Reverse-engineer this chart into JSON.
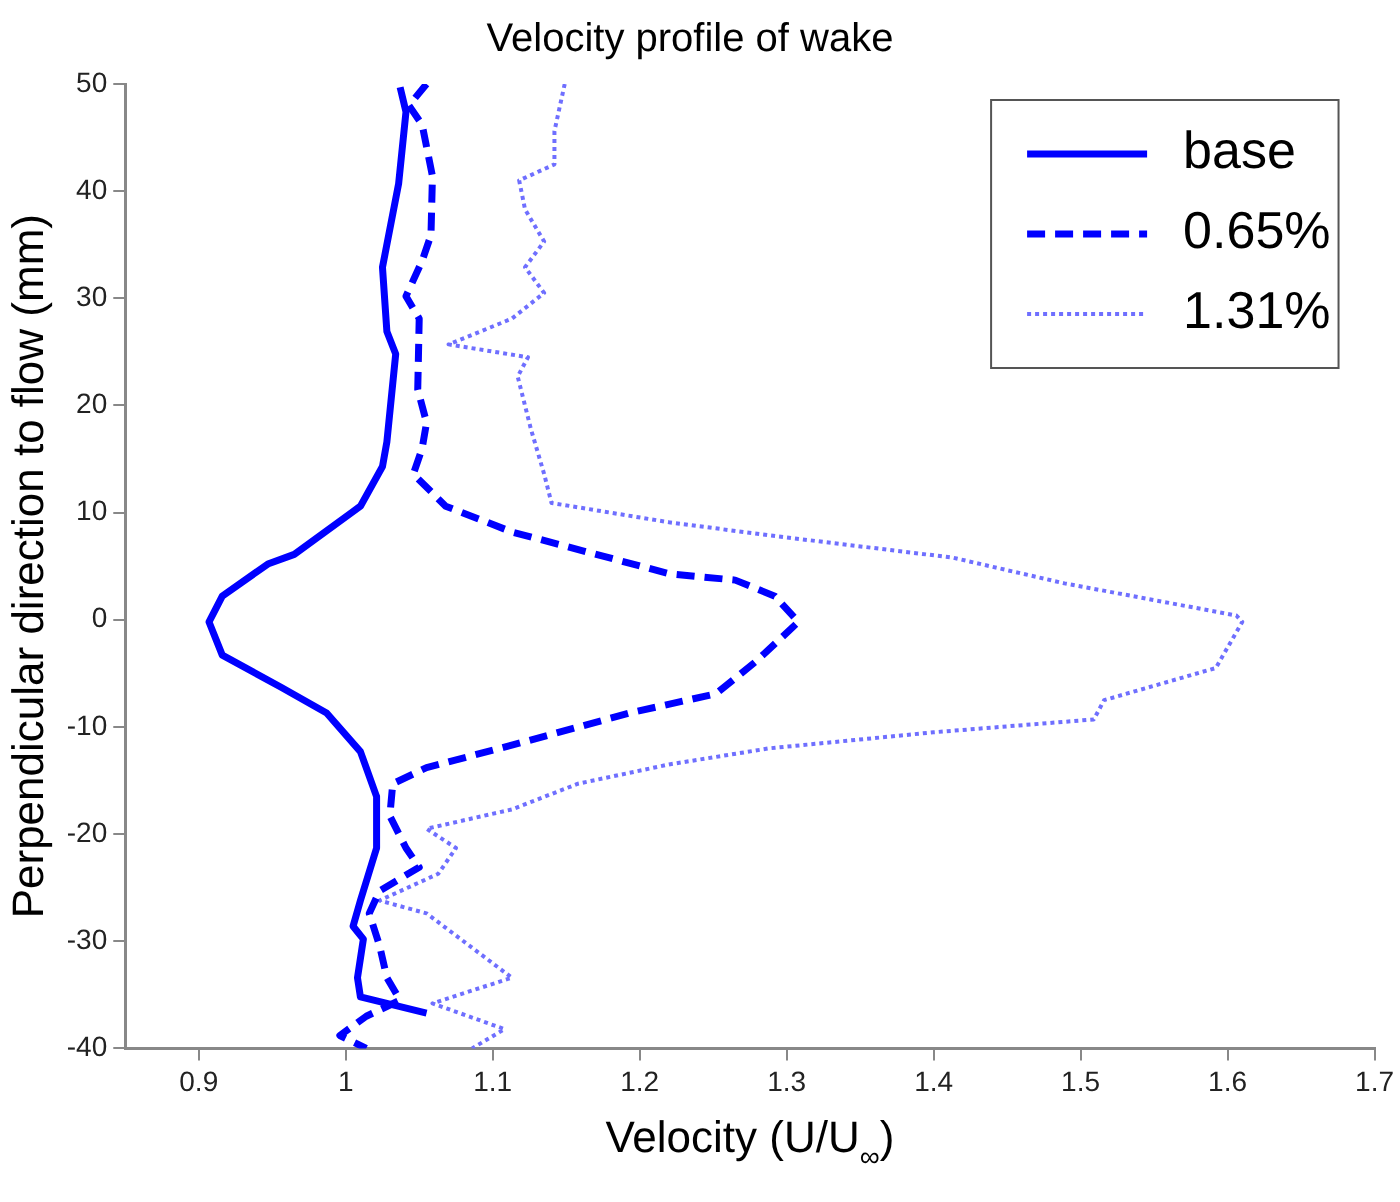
{
  "chart_data": {
    "type": "line",
    "title": "Velocity profile of wake",
    "xlabel": "Velocity (U/U$_{∞}$)",
    "ylabel": "Perpendicular direction to flow (mm)",
    "xlim": [
      0.85,
      1.7
    ],
    "xticks": [
      0.9,
      1,
      1.1,
      1.2,
      1.3,
      1.4,
      1.5,
      1.6,
      1.7
    ],
    "ylim": [
      -40,
      50
    ],
    "yticks": [
      -40,
      -30,
      -20,
      -10,
      0,
      10,
      20,
      30,
      40,
      50
    ],
    "grid": false,
    "legend": "top right",
    "marker": "none",
    "series": [
      {
        "name": "base",
        "color": "#0000ff",
        "line_style": "solid",
        "x": [
          1.037,
          1.041,
          1.036,
          1.025,
          1.028,
          1.034,
          1.028,
          1.025,
          1.01,
          0.965,
          0.947,
          0.916,
          0.907,
          0.916,
          0.956,
          0.987,
          1.01,
          1.021,
          1.021,
          1.01,
          1.005,
          1.012,
          1.008,
          1.01,
          1.055
        ],
        "values": [
          49.7,
          47.4,
          40.7,
          32.9,
          26.9,
          24.8,
          16.6,
          14.3,
          10.6,
          6.1,
          5.2,
          2.2,
          -0.2,
          -3.3,
          -6.3,
          -8.7,
          -12.3,
          -16.5,
          -21.3,
          -26.2,
          -28.6,
          -29.8,
          -33.4,
          -35.2,
          -36.7
        ]
      },
      {
        "name": "0.65%",
        "color": "#0000ff",
        "line_style": "dashed",
        "x": [
          1.055,
          1.043,
          1.052,
          1.059,
          1.058,
          1.052,
          1.041,
          1.05,
          1.049,
          1.055,
          1.052,
          1.046,
          1.068,
          1.113,
          1.22,
          1.265,
          1.292,
          1.308,
          1.279,
          1.252,
          1.193,
          1.113,
          1.055,
          1.032,
          1.03,
          1.041,
          1.05,
          1.023,
          1.016,
          1.023,
          1.028,
          1.037,
          1.014,
          0.996,
          1.014
        ],
        "values": [
          50,
          48,
          46.2,
          41.4,
          35.9,
          33.5,
          30.2,
          28.1,
          21.5,
          18.4,
          16,
          13.6,
          10.6,
          8.2,
          4.3,
          3.7,
          2.2,
          -0.2,
          -3.9,
          -6.9,
          -8.7,
          -11.7,
          -13.8,
          -15.3,
          -18.3,
          -21.3,
          -23.1,
          -25.3,
          -27.4,
          -30.4,
          -33.4,
          -35.5,
          -37,
          -38.8,
          -40
        ]
      },
      {
        "name": "1.31%",
        "color": "#6f6fff",
        "line_style": "dotted",
        "x": [
          1.149,
          1.142,
          1.142,
          1.118,
          1.122,
          1.135,
          1.122,
          1.135,
          1.113,
          1.07,
          1.124,
          1.117,
          1.126,
          1.135,
          1.14,
          1.22,
          1.287,
          1.413,
          1.489,
          1.606,
          1.61,
          1.592,
          1.516,
          1.509,
          1.4,
          1.288,
          1.22,
          1.158,
          1.113,
          1.055,
          1.075,
          1.063,
          1.023,
          1.055,
          1.113,
          1.059,
          1.108,
          1.086
        ],
        "values": [
          50,
          45.6,
          42.5,
          41,
          38.3,
          35.3,
          32.9,
          30.5,
          28.1,
          25.7,
          24.5,
          22.7,
          17.8,
          13.6,
          10.9,
          9.1,
          7.9,
          5.8,
          3.4,
          0.4,
          -0.2,
          -4.5,
          -7.5,
          -9.3,
          -10.5,
          -12,
          -13.5,
          -15.3,
          -17.7,
          -19.5,
          -21.3,
          -23.7,
          -26.2,
          -27.4,
          -33.4,
          -35.8,
          -38.2,
          -40
        ]
      }
    ]
  }
}
